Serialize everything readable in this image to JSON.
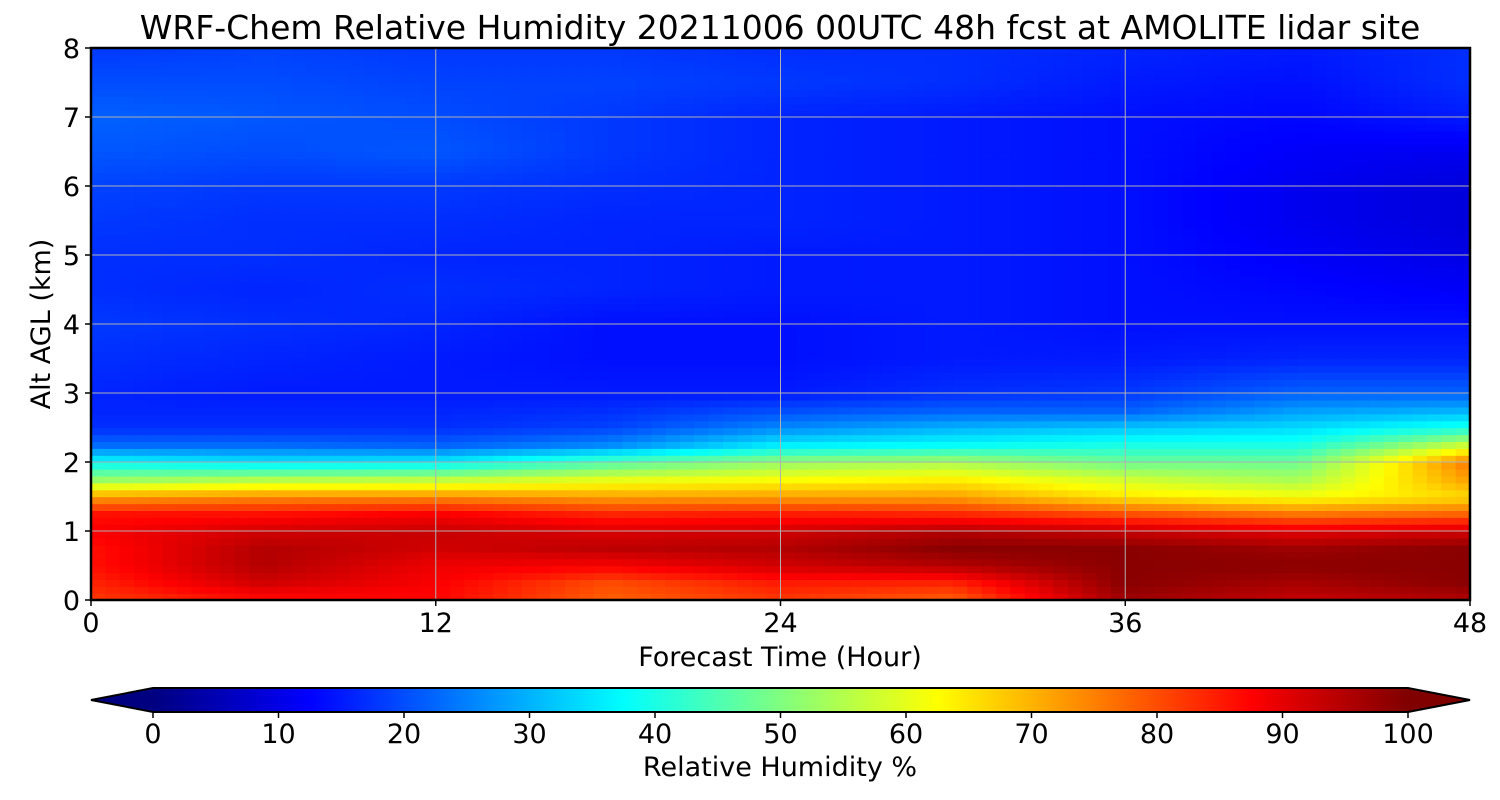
{
  "chart_data": {
    "type": "heatmap",
    "title": "WRF-Chem Relative Humidity 20211006 00UTC 48h fcst at AMOLITE lidar site",
    "xlabel": "Forecast Time (Hour)",
    "ylabel": "Alt AGL (km)",
    "xlim": [
      0,
      48
    ],
    "ylim": [
      0,
      8
    ],
    "x_ticks": [
      "0",
      "12",
      "24",
      "36",
      "48"
    ],
    "y_ticks": [
      "0",
      "1",
      "2",
      "3",
      "4",
      "5",
      "6",
      "7",
      "8"
    ],
    "grid": true,
    "colorbar": {
      "label": "Relative Humidity %",
      "range": [
        0,
        100
      ],
      "ticks": [
        "0",
        "10",
        "20",
        "30",
        "40",
        "50",
        "60",
        "70",
        "80",
        "90",
        "100"
      ],
      "colormap": "jet",
      "extend": "both"
    },
    "x": [
      0,
      6,
      12,
      18,
      24,
      30,
      36,
      42,
      48
    ],
    "y": [
      0.0,
      0.25,
      0.5,
      0.75,
      1.0,
      1.25,
      1.5,
      1.75,
      2.0,
      2.25,
      2.5,
      2.75,
      3.0,
      3.5,
      4.0,
      4.5,
      5.0,
      5.5,
      6.0,
      6.5,
      7.0,
      7.5,
      8.0
    ],
    "z": [
      [
        82,
        86,
        87,
        78,
        82,
        78,
        97,
        93,
        95
      ],
      [
        84,
        92,
        88,
        80,
        85,
        84,
        99,
        96,
        99
      ],
      [
        86,
        95,
        89,
        88,
        92,
        95,
        99,
        99,
        99
      ],
      [
        86,
        95,
        92,
        94,
        95,
        99,
        99,
        97,
        99
      ],
      [
        88,
        92,
        93,
        91,
        92,
        95,
        93,
        90,
        92
      ],
      [
        86,
        86,
        88,
        84,
        85,
        84,
        80,
        76,
        78
      ],
      [
        72,
        74,
        74,
        72,
        72,
        72,
        65,
        62,
        66
      ],
      [
        52,
        55,
        56,
        60,
        62,
        64,
        58,
        54,
        72
      ],
      [
        38,
        35,
        36,
        45,
        52,
        54,
        48,
        48,
        76
      ],
      [
        23,
        23,
        22,
        26,
        36,
        38,
        40,
        40,
        58
      ],
      [
        17,
        17,
        17,
        19,
        26,
        30,
        32,
        34,
        40
      ],
      [
        16,
        16,
        16,
        17,
        20,
        22,
        22,
        28,
        30
      ],
      [
        16,
        15,
        15,
        15,
        15,
        17,
        18,
        22,
        22
      ],
      [
        17,
        16,
        15,
        14,
        14,
        15,
        15,
        16,
        16
      ],
      [
        18,
        17,
        16,
        14,
        14,
        15,
        14,
        14,
        14
      ],
      [
        17,
        16,
        17,
        16,
        15,
        15,
        14,
        13,
        12
      ],
      [
        17,
        17,
        16,
        16,
        15,
        15,
        14,
        12,
        10
      ],
      [
        18,
        17,
        17,
        16,
        16,
        15,
        14,
        11,
        9
      ],
      [
        19,
        18,
        18,
        17,
        16,
        15,
        14,
        11,
        9
      ],
      [
        21,
        20,
        21,
        18,
        16,
        15,
        14,
        12,
        11
      ],
      [
        22,
        21,
        20,
        18,
        16,
        15,
        14,
        13,
        15
      ],
      [
        20,
        20,
        19,
        19,
        18,
        17,
        15,
        14,
        17
      ],
      [
        18,
        19,
        18,
        18,
        17,
        17,
        16,
        15,
        17
      ]
    ]
  }
}
